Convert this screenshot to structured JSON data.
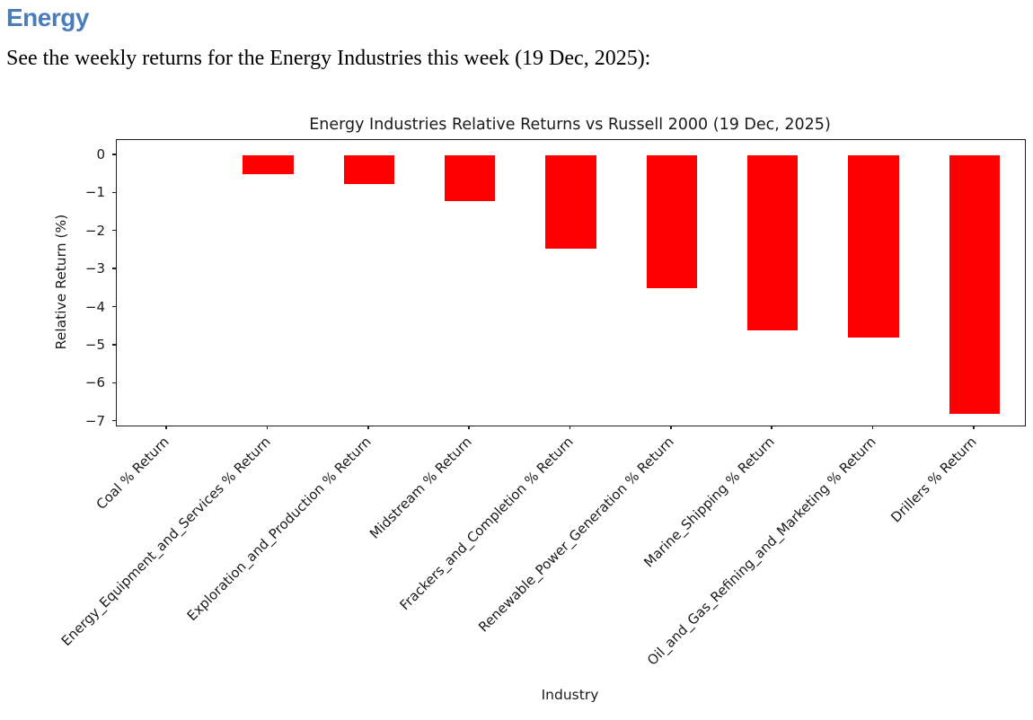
{
  "page": {
    "heading": "Energy",
    "description": "See the weekly returns for the Energy Industries this week (19 Dec, 2025):"
  },
  "chart_data": {
    "type": "bar",
    "title": "Energy Industries Relative Returns vs Russell 2000 (19 Dec, 2025)",
    "xlabel": "Industry",
    "ylabel": "Relative Return (%)",
    "categories": [
      "Coal % Return",
      "Energy_Equipment_and_Services % Return",
      "Exploration_and_Production % Return",
      "Midstream % Return",
      "Frackers_and_Completion % Return",
      "Renewable_Power_Generation % Return",
      "Marine_Shipping % Return",
      "Oil_and_Gas_Refining_and_Marketing % Return",
      "Drillers % Return"
    ],
    "values": [
      0.0,
      -0.5,
      -0.75,
      -1.2,
      -2.45,
      -3.5,
      -4.6,
      -4.8,
      -6.8
    ],
    "bar_color": "#ff0000",
    "bar_width_fraction": 0.5,
    "ylim": [
      0.4,
      -7.1
    ],
    "yticks": [
      0,
      -1,
      -2,
      -3,
      -4,
      -5,
      -6,
      -7
    ],
    "ytick_labels": [
      "0",
      "−1",
      "−2",
      "−3",
      "−4",
      "−5",
      "−6",
      "−7"
    ],
    "x_tick_rotation": 45,
    "grid": false,
    "legend": "none"
  },
  "colors": {
    "heading": "#4a7dba",
    "axis": "#1d1d1d",
    "text": "#000000"
  }
}
